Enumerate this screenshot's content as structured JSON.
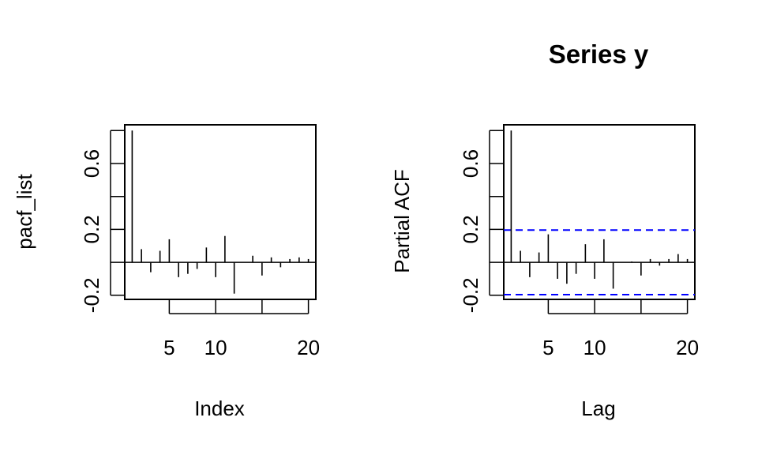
{
  "chart_data": [
    {
      "type": "bar",
      "style": "vertical-lines",
      "title": "",
      "xlabel": "Index",
      "ylabel": "pacf_list",
      "x": [
        1,
        2,
        3,
        4,
        5,
        6,
        7,
        8,
        9,
        10,
        11,
        12,
        13,
        14,
        15,
        16,
        17,
        18,
        19,
        20
      ],
      "values": [
        0.8,
        0.08,
        -0.06,
        0.07,
        0.14,
        -0.09,
        -0.07,
        -0.04,
        0.09,
        -0.09,
        0.16,
        -0.19,
        0.0,
        0.04,
        -0.08,
        0.03,
        -0.03,
        0.02,
        0.03,
        0.02
      ],
      "xticks": [
        5,
        10,
        20
      ],
      "yticks": [
        -0.2,
        0.2,
        0.6
      ],
      "ytick_labels": [
        "-0.2",
        "0.2",
        "0.6"
      ],
      "ylim": [
        -0.2,
        0.8
      ],
      "grid": false,
      "bar_color": "#000000",
      "confidence_band": null
    },
    {
      "type": "bar",
      "style": "vertical-lines",
      "title": "Series  y",
      "xlabel": "Lag",
      "ylabel": "Partial ACF",
      "x": [
        1,
        2,
        3,
        4,
        5,
        6,
        7,
        8,
        9,
        10,
        11,
        12,
        13,
        14,
        15,
        16,
        17,
        18,
        19,
        20
      ],
      "values": [
        0.8,
        0.07,
        -0.09,
        0.06,
        0.17,
        -0.1,
        -0.13,
        -0.07,
        0.11,
        -0.1,
        0.14,
        -0.16,
        0.0,
        0.005,
        -0.08,
        0.02,
        -0.02,
        0.02,
        0.05,
        0.02
      ],
      "xticks": [
        5,
        10,
        20
      ],
      "yticks": [
        -0.2,
        0.2,
        0.6
      ],
      "ytick_labels": [
        "-0.2",
        "0.2",
        "0.6"
      ],
      "ylim": [
        -0.2,
        0.8
      ],
      "grid": false,
      "bar_color": "#000000",
      "confidence_band": {
        "upper": 0.196,
        "lower": -0.196,
        "color": "#0000ff",
        "style": "dashed"
      }
    }
  ]
}
